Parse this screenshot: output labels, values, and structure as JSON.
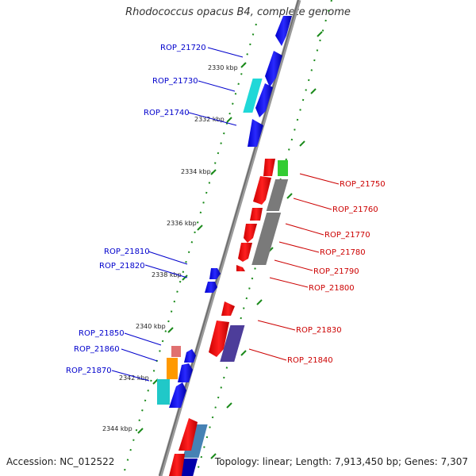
{
  "title": "Rhodococcus opacus B4, complete genome",
  "footer": {
    "accession": "Accession: NC_012522",
    "summary": "Topology: linear; Length: 7,913,450 bp; Genes: 7,307"
  },
  "colors": {
    "forward": "#ff0000",
    "reverse": "#0000ff",
    "backbone": "#888888",
    "ticks": "#1a8a1a",
    "left_label": "#0000cc",
    "right_label": "#cc0000"
  },
  "kbp_ticks": [
    {
      "label": "2330 kbp",
      "kbp": 2330
    },
    {
      "label": "2332 kbp",
      "kbp": 2332
    },
    {
      "label": "2334 kbp",
      "kbp": 2334
    },
    {
      "label": "2336 kbp",
      "kbp": 2336
    },
    {
      "label": "2338 kbp",
      "kbp": 2338
    },
    {
      "label": "2340 kbp",
      "kbp": 2340
    },
    {
      "label": "2342 kbp",
      "kbp": 2342
    },
    {
      "label": "2344 kbp",
      "kbp": 2344
    }
  ],
  "left_genes": [
    {
      "label": "ROP_21720"
    },
    {
      "label": "ROP_21730"
    },
    {
      "label": "ROP_21740"
    },
    {
      "label": "ROP_21810"
    },
    {
      "label": "ROP_21820"
    },
    {
      "label": "ROP_21850"
    },
    {
      "label": "ROP_21860"
    },
    {
      "label": "ROP_21870"
    }
  ],
  "right_genes": [
    {
      "label": "ROP_21750"
    },
    {
      "label": "ROP_21760"
    },
    {
      "label": "ROP_21770"
    },
    {
      "label": "ROP_21780"
    },
    {
      "label": "ROP_21790"
    },
    {
      "label": "ROP_21800"
    },
    {
      "label": "ROP_21830"
    },
    {
      "label": "ROP_21840"
    }
  ]
}
